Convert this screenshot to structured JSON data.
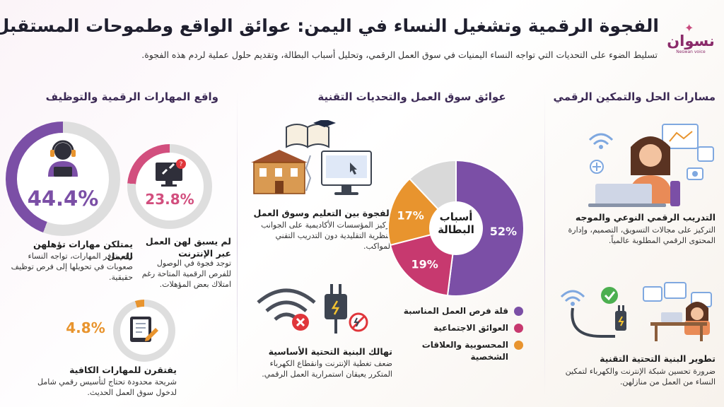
{
  "header": {
    "title": "الفجوة الرقمية وتشغيل النساء في اليمن: عوائق الواقع وطموحات المستقبل",
    "subtitle": "تسليط الضوء على التحديات التي تواجه النساء اليمنيات في سوق العمل الرقمي، وتحليل أسباب البطالة، وتقديم حلول عملية لردم هذه الفجوة.",
    "logo_text": "نسوان",
    "logo_tagline": "Neswan voice"
  },
  "colors": {
    "purple": "#7b4fa6",
    "magenta": "#c7396f",
    "orange": "#e8942e",
    "grey": "#d9d9d9",
    "navy": "#3c2a55"
  },
  "sections": {
    "right": {
      "title": "مسارات الحل والتمكين الرقمي",
      "items": [
        {
          "heading": "التدريب الرقمي النوعي والموجه",
          "body": "التركيز على مجالات التسويق، التصميم، وإدارة المحتوى الرقمي المطلوبة عالمياً.",
          "icon": "woman-laptop-icon"
        },
        {
          "heading": "تطوير البنية التحتية التقنية",
          "body": "ضرورة تحسين شبكة الإنترنت والكهرباء لتمكين النساء من العمل من منازلهن.",
          "icon": "plug-wifi-check-icon"
        }
      ]
    },
    "middle": {
      "title": "عوائق سوق العمل والتحديات التقنية",
      "items": [
        {
          "heading": "الفجوة بين التعليم وسوق العمل",
          "body": "تركيز المؤسسات الأكاديمية على الجوانب النظرية التقليدية دون التدريب التقني المواكب.",
          "icon": "school-book-computer-icon"
        },
        {
          "heading": "تهالك البنية التحتية الأساسية",
          "body": "ضعف تغطية الإنترنت وانقطاع الكهرباء المتكرر يعيقان استمرارية العمل الرقمي.",
          "icon": "wifi-plug-error-icon"
        }
      ]
    },
    "left": {
      "title": "واقع المهارات الرقمية والتوظيف",
      "stats": [
        {
          "value": 44.4,
          "label": "44.4%",
          "heading": "يمتلكن مهارات تؤهلهن للعمل",
          "body": "رغم توفر المهارات، تواجه النساء صعوبات في تحويلها إلى فرص توظيف حقيقية.",
          "color": "#7b4fa6",
          "icon": "headset-agent-icon"
        },
        {
          "value": 23.8,
          "label": "23.8%",
          "heading": "لم يسبق لهن العمل عبر الإنترنت",
          "body": "توجد فجوة في الوصول للفرص الرقمية المتاحة رغم امتلاك بعض المؤهلات.",
          "color": "#d24f7e",
          "icon": "broken-link-monitor-icon"
        },
        {
          "value": 4.8,
          "label": "4.8%",
          "heading": "يفتقرن للمهارات الكافية",
          "body": "شريحة محدودة تحتاج لتأسيس رقمي شامل لدخول سوق العمل الحديث.",
          "color": "#e8942e",
          "icon": "tablet-pen-icon"
        }
      ]
    }
  },
  "chart_data": {
    "type": "pie",
    "title": "أسباب البطالة",
    "categories": [
      "قلة فرص العمل المناسبة",
      "العوائق الاجتماعية",
      "المحسوبية والعلاقات الشخصية"
    ],
    "values": [
      52,
      19,
      17
    ],
    "value_labels": [
      "52%",
      "19%",
      "17%"
    ],
    "colors": [
      "#7b4fa6",
      "#c7396f",
      "#e8942e"
    ],
    "remainder_color": "#d9d9d9",
    "legend_position": "bottom"
  }
}
